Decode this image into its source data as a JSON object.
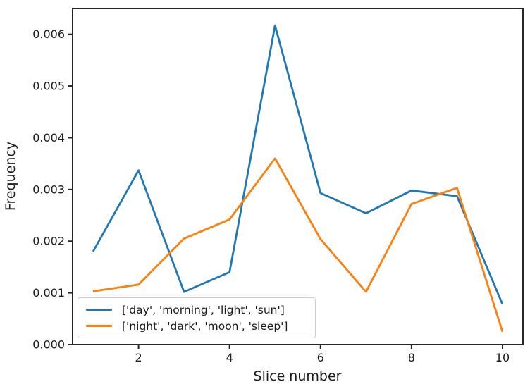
{
  "chart_data": {
    "type": "line",
    "title": "",
    "xlabel": "Slice number",
    "ylabel": "Frequency",
    "x": [
      1,
      2,
      3,
      4,
      5,
      6,
      7,
      8,
      9,
      10
    ],
    "series": [
      {
        "name": "['day', 'morning', 'light', 'sun']",
        "color": "#1f77b4",
        "values": [
          0.0018,
          0.00337,
          0.00102,
          0.0014,
          0.00617,
          0.00293,
          0.00254,
          0.00298,
          0.00287,
          0.00078
        ]
      },
      {
        "name": "['night', 'dark', 'moon', 'sleep']",
        "color": "#ff7f0e",
        "values": [
          0.00103,
          0.00116,
          0.00205,
          0.00242,
          0.0036,
          0.00204,
          0.00102,
          0.00272,
          0.00303,
          0.00025
        ]
      }
    ],
    "xlim": [
      0.55,
      10.45
    ],
    "ylim": [
      0.0,
      0.0065
    ],
    "xticks": [
      {
        "value": 2,
        "label": "2"
      },
      {
        "value": 4,
        "label": "4"
      },
      {
        "value": 6,
        "label": "6"
      },
      {
        "value": 8,
        "label": "8"
      },
      {
        "value": 10,
        "label": "10"
      }
    ],
    "yticks": [
      {
        "value": 0.0,
        "label": "0.000"
      },
      {
        "value": 0.001,
        "label": "0.001"
      },
      {
        "value": 0.002,
        "label": "0.002"
      },
      {
        "value": 0.003,
        "label": "0.003"
      },
      {
        "value": 0.004,
        "label": "0.004"
      },
      {
        "value": 0.005,
        "label": "0.005"
      },
      {
        "value": 0.006,
        "label": "0.006"
      }
    ],
    "grid": false,
    "legend_position": "lower-left",
    "spine_color": "#262626"
  }
}
